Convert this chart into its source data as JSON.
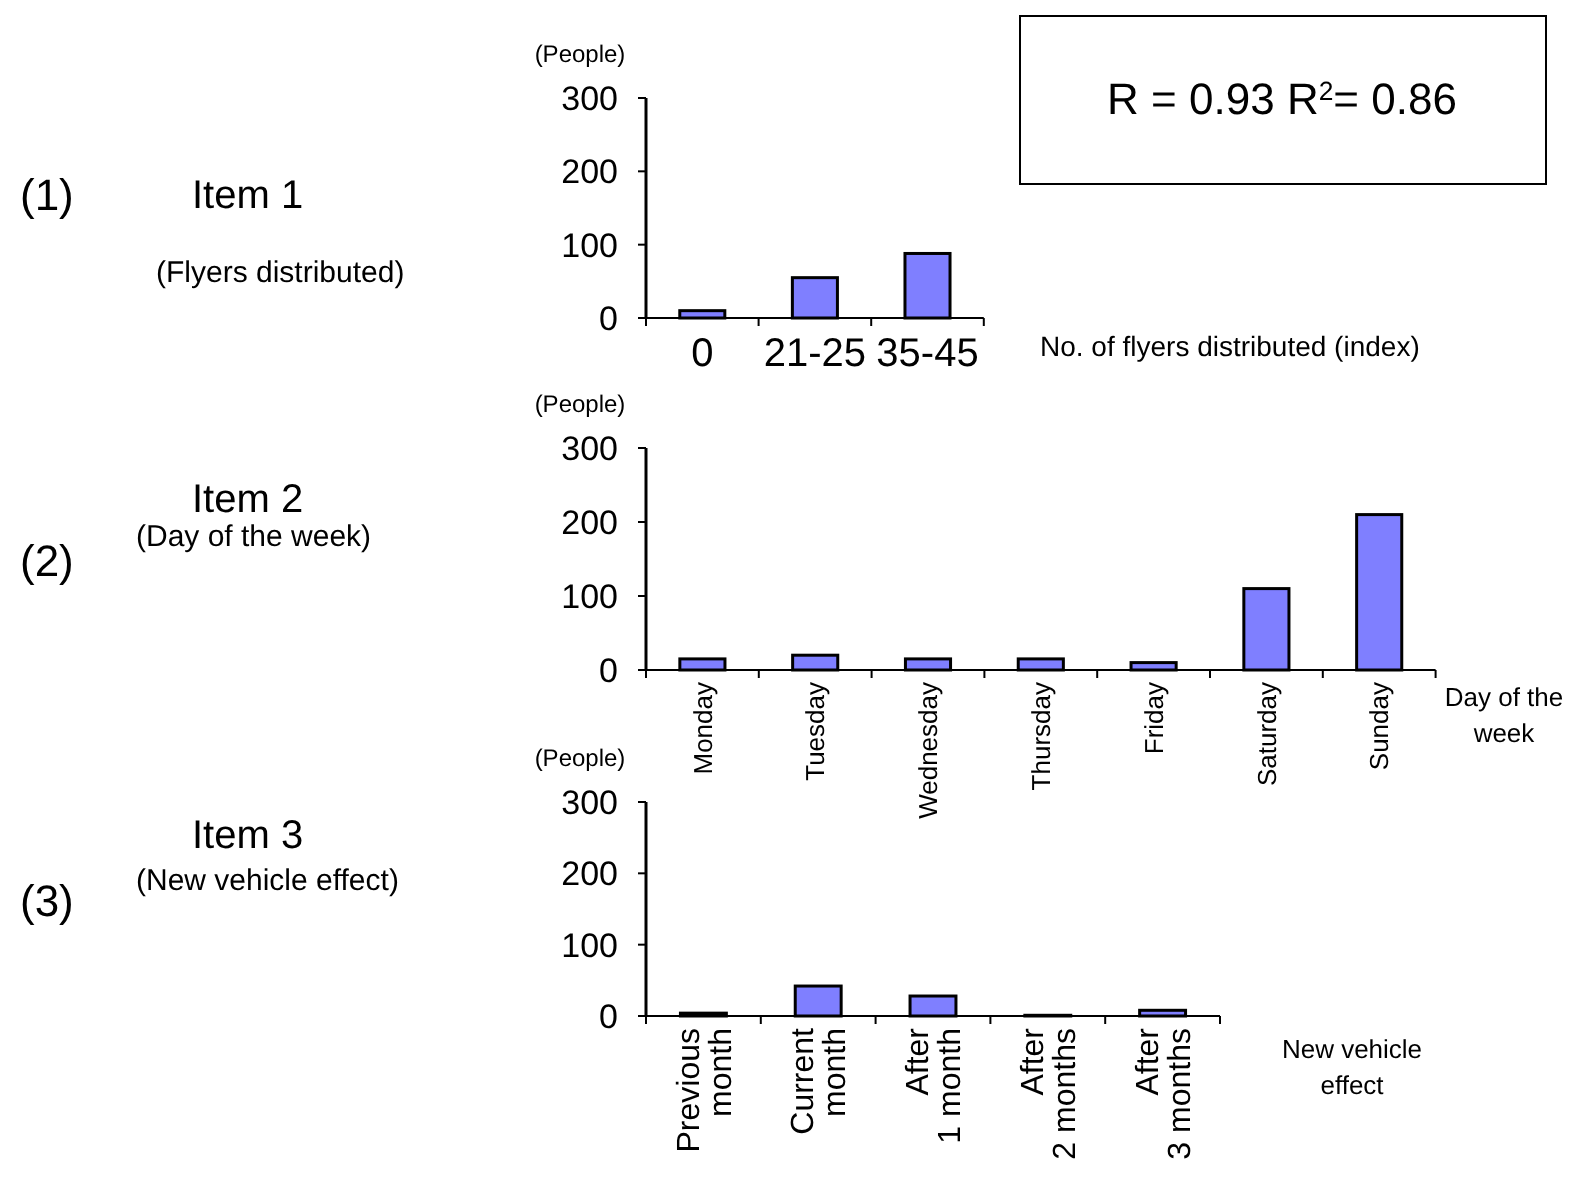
{
  "chart_data": [
    {
      "type": "bar",
      "ylabel": "(People)",
      "xlabel": "No. of flyers distributed (index)",
      "annotations": [
        "(1)",
        "Item 1",
        "(Flyers distributed)",
        "R = 0.93 R$^{2}$= 0.86"
      ],
      "categories": [
        "0",
        "21-25",
        "35-45"
      ],
      "values": [
        10,
        55,
        88
      ],
      "color": "#7f7fff",
      "ylim": [
        0,
        300
      ],
      "yticks": [
        0,
        100,
        200,
        300
      ],
      "grid": false
    },
    {
      "type": "bar",
      "ylabel": "(People)",
      "xlabel": "Day of the week",
      "annotations": [
        "(2)",
        "Item 2",
        "(Day of the week)"
      ],
      "categories": [
        "Monday",
        "Tuesday",
        "Wednesday",
        "Thursday",
        "Friday",
        "Saturday",
        "Sunday"
      ],
      "values": [
        15,
        20,
        15,
        15,
        10,
        110,
        210
      ],
      "color": "#7f7fff",
      "ylim": [
        0,
        300
      ],
      "yticks": [
        0,
        100,
        200,
        300
      ],
      "grid": false
    },
    {
      "type": "bar",
      "ylabel": "(People)",
      "xlabel": "New vehicle effect",
      "annotations": [
        "(3)",
        "Item 3",
        "(New vehicle effect)"
      ],
      "categories": [
        "Previous month",
        "Current month",
        "After 1 month",
        "After 2 months",
        "After 3 months"
      ],
      "values": [
        4,
        42,
        28,
        1,
        8
      ],
      "color": "#7f7fff",
      "ylim": [
        0,
        300
      ],
      "yticks": [
        0,
        100,
        200,
        300
      ],
      "grid": false
    }
  ]
}
